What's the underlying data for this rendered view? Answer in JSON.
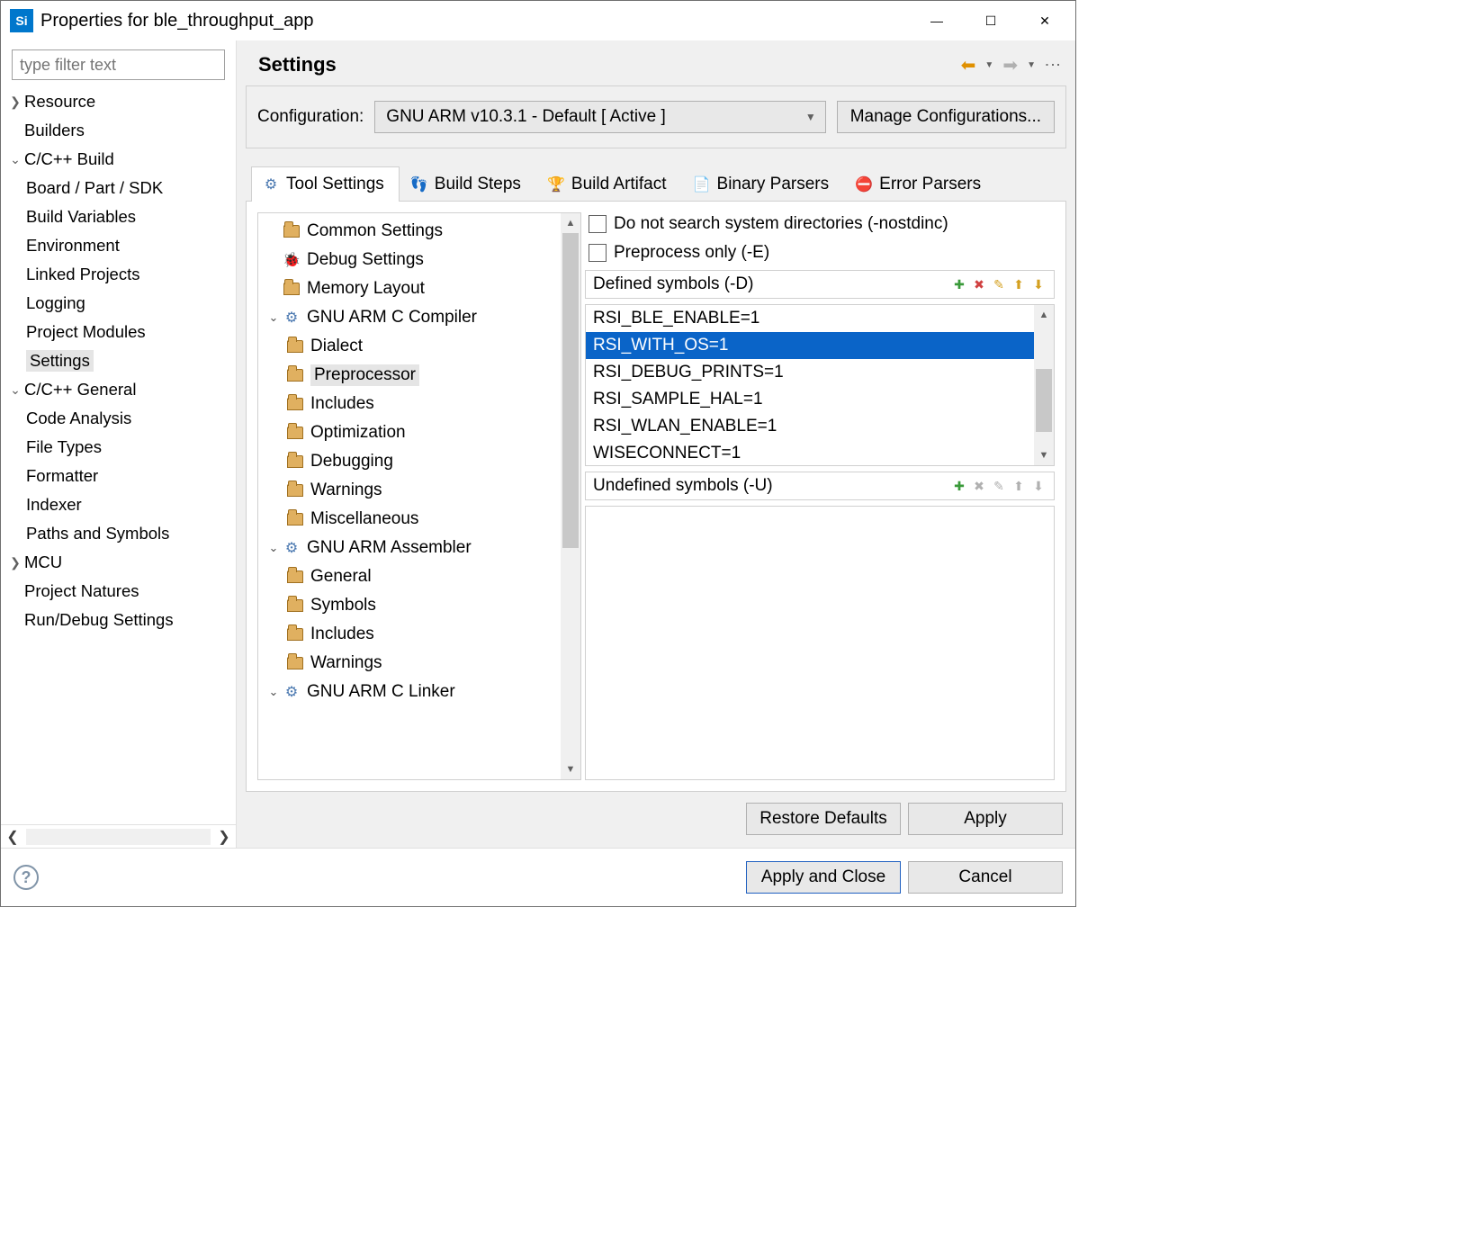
{
  "window": {
    "title": "Properties for ble_throughput_app"
  },
  "sidebar": {
    "filter_placeholder": "type filter text",
    "items": [
      {
        "label": "Resource",
        "level": 0,
        "arrow": ">",
        "sel": false
      },
      {
        "label": "Builders",
        "level": 0,
        "arrow": "",
        "sel": false
      },
      {
        "label": "C/C++ Build",
        "level": 0,
        "arrow": "v",
        "sel": false
      },
      {
        "label": "Board / Part / SDK",
        "level": 1,
        "arrow": "",
        "sel": false
      },
      {
        "label": "Build Variables",
        "level": 1,
        "arrow": "",
        "sel": false
      },
      {
        "label": "Environment",
        "level": 1,
        "arrow": "",
        "sel": false
      },
      {
        "label": "Linked Projects",
        "level": 1,
        "arrow": "",
        "sel": false
      },
      {
        "label": "Logging",
        "level": 1,
        "arrow": "",
        "sel": false
      },
      {
        "label": "Project Modules",
        "level": 1,
        "arrow": "",
        "sel": false
      },
      {
        "label": "Settings",
        "level": 1,
        "arrow": "",
        "sel": true
      },
      {
        "label": "C/C++ General",
        "level": 0,
        "arrow": "v",
        "sel": false
      },
      {
        "label": "Code Analysis",
        "level": 1,
        "arrow": ">",
        "sel": false
      },
      {
        "label": "File Types",
        "level": 1,
        "arrow": "",
        "sel": false
      },
      {
        "label": "Formatter",
        "level": 1,
        "arrow": "",
        "sel": false
      },
      {
        "label": "Indexer",
        "level": 1,
        "arrow": "",
        "sel": false
      },
      {
        "label": "Paths and Symbols",
        "level": 1,
        "arrow": "",
        "sel": false
      },
      {
        "label": "MCU",
        "level": 0,
        "arrow": ">",
        "sel": false
      },
      {
        "label": "Project Natures",
        "level": 0,
        "arrow": "",
        "sel": false
      },
      {
        "label": "Run/Debug Settings",
        "level": 0,
        "arrow": "",
        "sel": false
      }
    ]
  },
  "page": {
    "title": "Settings",
    "config_label": "Configuration:",
    "config_value": "GNU ARM v10.3.1 - Default  [ Active ]",
    "manage_btn": "Manage Configurations...",
    "tabs": [
      {
        "label": "Tool Settings",
        "icon": "gear",
        "active": true
      },
      {
        "label": "Build Steps",
        "icon": "steps",
        "active": false
      },
      {
        "label": "Build Artifact",
        "icon": "trophy",
        "active": false
      },
      {
        "label": "Binary Parsers",
        "icon": "doc",
        "active": false
      },
      {
        "label": "Error Parsers",
        "icon": "err",
        "active": false
      }
    ],
    "tool_tree": [
      {
        "label": "Common Settings",
        "level": 0,
        "icon": "folder",
        "arrow": ""
      },
      {
        "label": "Debug Settings",
        "level": 0,
        "icon": "bug",
        "arrow": ""
      },
      {
        "label": "Memory Layout",
        "level": 0,
        "icon": "folder",
        "arrow": ""
      },
      {
        "label": "GNU ARM C Compiler",
        "level": 0,
        "icon": "gear",
        "arrow": "v"
      },
      {
        "label": "Dialect",
        "level": 1,
        "icon": "folder",
        "arrow": ""
      },
      {
        "label": "Preprocessor",
        "level": 1,
        "icon": "folder",
        "arrow": "",
        "sel": true
      },
      {
        "label": "Includes",
        "level": 1,
        "icon": "folder",
        "arrow": ""
      },
      {
        "label": "Optimization",
        "level": 1,
        "icon": "folder",
        "arrow": ""
      },
      {
        "label": "Debugging",
        "level": 1,
        "icon": "folder",
        "arrow": ""
      },
      {
        "label": "Warnings",
        "level": 1,
        "icon": "folder",
        "arrow": ""
      },
      {
        "label": "Miscellaneous",
        "level": 1,
        "icon": "folder",
        "arrow": ""
      },
      {
        "label": "GNU ARM Assembler",
        "level": 0,
        "icon": "gear",
        "arrow": "v"
      },
      {
        "label": "General",
        "level": 1,
        "icon": "folder",
        "arrow": ""
      },
      {
        "label": "Symbols",
        "level": 1,
        "icon": "folder",
        "arrow": ""
      },
      {
        "label": "Includes",
        "level": 1,
        "icon": "folder",
        "arrow": ""
      },
      {
        "label": "Warnings",
        "level": 1,
        "icon": "folder",
        "arrow": ""
      },
      {
        "label": "GNU ARM C Linker",
        "level": 0,
        "icon": "gear",
        "arrow": "v"
      }
    ],
    "checks": {
      "nostdinc": "Do not search system directories (-nostdinc)",
      "preproc": "Preprocess only (-E)"
    },
    "defined_title": "Defined symbols (-D)",
    "undefined_title": "Undefined symbols (-U)",
    "defined_symbols": [
      {
        "v": "RSI_BLE_ENABLE=1",
        "sel": false
      },
      {
        "v": "RSI_WITH_OS=1",
        "sel": true
      },
      {
        "v": "RSI_DEBUG_PRINTS=1",
        "sel": false
      },
      {
        "v": "RSI_SAMPLE_HAL=1",
        "sel": false
      },
      {
        "v": "RSI_WLAN_ENABLE=1",
        "sel": false
      },
      {
        "v": "WISECONNECT=1",
        "sel": false
      }
    ],
    "restore_btn": "Restore Defaults",
    "apply_btn": "Apply"
  },
  "footer": {
    "apply_close": "Apply and Close",
    "cancel": "Cancel"
  },
  "colors": {
    "selection": "#0a64c8",
    "panel_bg": "#f0f0f0",
    "border": "#d0d0d0"
  }
}
